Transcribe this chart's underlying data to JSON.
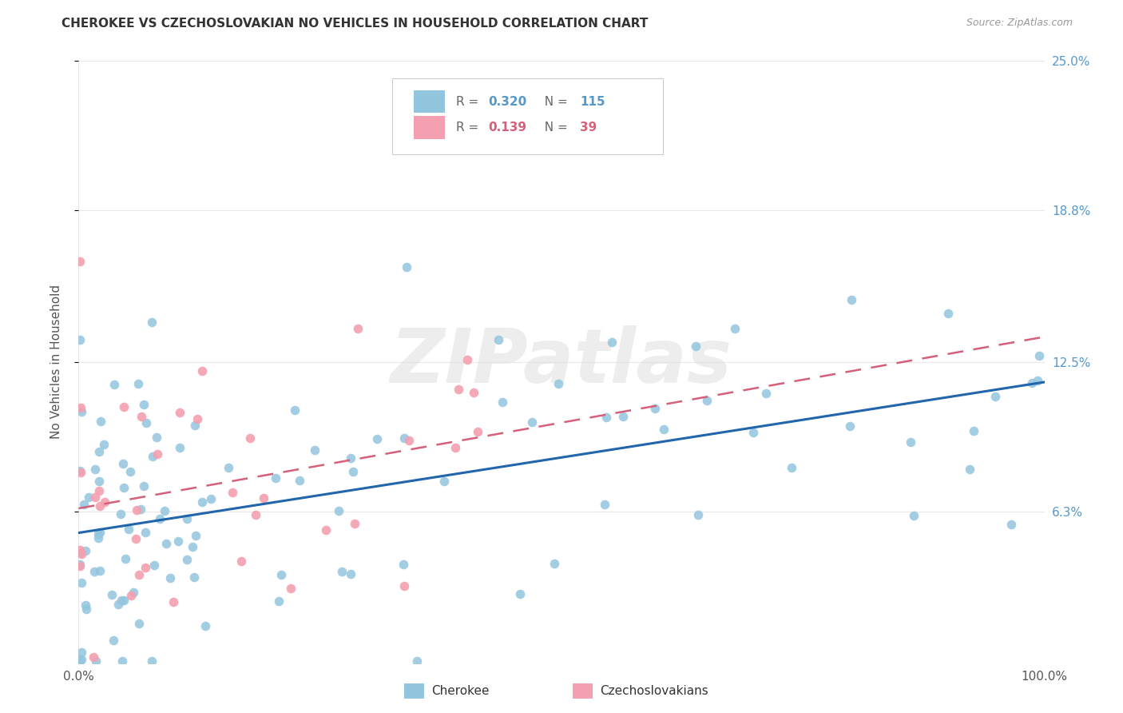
{
  "title": "CHEROKEE VS CZECHOSLOVAKIAN NO VEHICLES IN HOUSEHOLD CORRELATION CHART",
  "source": "Source: ZipAtlas.com",
  "ylabel": "No Vehicles in Household",
  "watermark": "ZIPatlas",
  "xlim": [
    0.0,
    1.0
  ],
  "ylim": [
    0.0,
    0.25
  ],
  "xticklabels": [
    "0.0%",
    "100.0%"
  ],
  "ytick_vals": [
    0.063,
    0.125,
    0.188,
    0.25
  ],
  "yticklabels": [
    "6.3%",
    "12.5%",
    "18.8%",
    "25.0%"
  ],
  "cherokee_color": "#92c5de",
  "czech_color": "#f4a0b0",
  "cherokee_line_color": "#2166ac",
  "czech_line_color": "#d6607a",
  "legend_cherokee_label": "Cherokee",
  "legend_czech_label": "Czechoslovakians",
  "cherokee_R": "0.320",
  "cherokee_N": "115",
  "czech_R": "0.139",
  "czech_N": "39",
  "background_color": "#ffffff",
  "grid_color": "#e8e8e8",
  "title_color": "#333333",
  "right_label_color": "#5599cc",
  "ylabel_color": "#555555",
  "tick_color": "#555555",
  "source_color": "#999999"
}
